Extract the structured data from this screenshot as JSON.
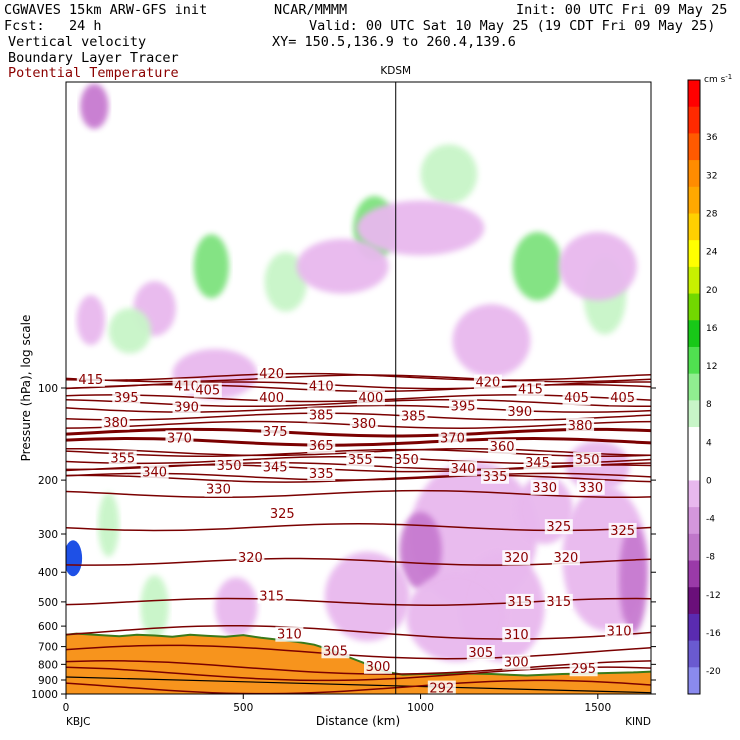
{
  "header": {
    "model": "CGWAVES 15km ARW-GFS init",
    "org": "NCAR/MMMM",
    "init": "Init: 00 UTC Fri 09 May 25",
    "fcst": "Fcst:   24 h",
    "valid": "Valid: 00 UTC Sat 10 May 25 (19 CDT Fri 09 May 25)",
    "field1": "Vertical velocity",
    "xy": "XY= 150.5,136.9 to 260.4,139.6",
    "field2": "Boundary Layer Tracer",
    "field3": "Potential Temperature"
  },
  "colors": {
    "theta": "#7a0000",
    "terrain": "#f7941d",
    "up_light": "#c8f5c8",
    "up_mid": "#7ee27e",
    "down_light": "#e8b8ee",
    "down_mid": "#c77ad0",
    "down_dark": "#9a3aa8",
    "tracer": "#1e50e6"
  },
  "chart_data": {
    "type": "heatmap",
    "xlabel": "Distance (km)",
    "ylabel": "Pressure (hPa), log scale",
    "xlim": [
      0,
      1650
    ],
    "ylim": [
      1000,
      10
    ],
    "log_scale_y": true,
    "x_ticks": [
      0,
      500,
      1000,
      1500
    ],
    "x_tick_labels": [
      "0",
      "500",
      "1000",
      "1500"
    ],
    "y_ticks": [
      100,
      200,
      300,
      400,
      500,
      600,
      700,
      800,
      900,
      1000
    ],
    "y_tick_labels": [
      "100",
      "200",
      "300",
      "400",
      "500",
      "600",
      "700",
      "800",
      "900",
      "1000"
    ],
    "station_left": "KBJC",
    "station_right": "KIND",
    "station_mid": "KDSM",
    "station_mid_km": 930,
    "colorbar": {
      "units_label": "cm s",
      "units_exp": "-1",
      "levels": [
        36,
        32,
        28,
        24,
        20,
        16,
        12,
        8,
        4,
        0,
        -4,
        -8,
        -12,
        -16,
        -20
      ],
      "labels": [
        "36",
        "32",
        "28",
        "24",
        "20",
        "16",
        "12",
        "8",
        "4",
        "0",
        "-4",
        "-8",
        "-12",
        "-16",
        "-20"
      ],
      "colors": [
        "#ff0000",
        "#ff2a00",
        "#ff5a00",
        "#ff8c00",
        "#ffa800",
        "#ffd000",
        "#ffff00",
        "#c8f000",
        "#72d800",
        "#18c818",
        "#50e050",
        "#90ee90",
        "#c8f5c8",
        "#ffffff",
        "#ffffff",
        "#e8b8ee",
        "#d496dc",
        "#c077ca",
        "#9a3aa8",
        "#6a0f7a",
        "#5a2bb0",
        "#6a5ad0",
        "#8a8aee"
      ]
    },
    "theta_lines": [
      {
        "label": "415",
        "p": 93
      },
      {
        "label": "420",
        "p": 92
      },
      {
        "label": "410",
        "p": 98
      },
      {
        "label": "405",
        "p": 100
      },
      {
        "label": "400",
        "p": 108
      },
      {
        "label": "395",
        "p": 112
      },
      {
        "label": "390",
        "p": 117
      },
      {
        "label": "385",
        "p": 124
      },
      {
        "label": "380",
        "p": 132
      },
      {
        "label": "375",
        "p": 140
      },
      {
        "label": "370",
        "p": 150
      },
      {
        "label": "365",
        "p": 162
      },
      {
        "label": "360",
        "p": 163
      },
      {
        "label": "355",
        "p": 172
      },
      {
        "label": "350",
        "p": 180
      },
      {
        "label": "345",
        "p": 183
      },
      {
        "label": "340",
        "p": 195
      },
      {
        "label": "335",
        "p": 198
      },
      {
        "label": "330",
        "p": 222
      },
      {
        "label": "325",
        "p": 285
      },
      {
        "label": "320",
        "p": 370
      },
      {
        "label": "315",
        "p": 500
      },
      {
        "label": "310",
        "p": 630
      },
      {
        "label": "305",
        "p": 730
      },
      {
        "label": "300",
        "p": 820
      },
      {
        "label": "295",
        "p": 860
      },
      {
        "label": "292",
        "p": 950
      }
    ],
    "theta_label_positions": [
      {
        "label": "415",
        "x": 70,
        "p": 94
      },
      {
        "label": "420",
        "x": 580,
        "p": 90
      },
      {
        "label": "410",
        "x": 340,
        "p": 99
      },
      {
        "label": "410",
        "x": 720,
        "p": 99
      },
      {
        "label": "420",
        "x": 1190,
        "p": 96
      },
      {
        "label": "415",
        "x": 1310,
        "p": 101
      },
      {
        "label": "405",
        "x": 400,
        "p": 102
      },
      {
        "label": "400",
        "x": 580,
        "p": 108
      },
      {
        "label": "400",
        "x": 860,
        "p": 108
      },
      {
        "label": "405",
        "x": 1440,
        "p": 108
      },
      {
        "label": "405",
        "x": 1570,
        "p": 108
      },
      {
        "label": "395",
        "x": 170,
        "p": 108
      },
      {
        "label": "390",
        "x": 340,
        "p": 116
      },
      {
        "label": "395",
        "x": 1120,
        "p": 115
      },
      {
        "label": "390",
        "x": 1280,
        "p": 120
      },
      {
        "label": "385",
        "x": 720,
        "p": 123
      },
      {
        "label": "385",
        "x": 980,
        "p": 124
      },
      {
        "label": "380",
        "x": 140,
        "p": 130
      },
      {
        "label": "380",
        "x": 840,
        "p": 131
      },
      {
        "label": "380",
        "x": 1450,
        "p": 133
      },
      {
        "label": "375",
        "x": 590,
        "p": 139
      },
      {
        "label": "370",
        "x": 320,
        "p": 146
      },
      {
        "label": "370",
        "x": 1090,
        "p": 146
      },
      {
        "label": "365",
        "x": 720,
        "p": 155
      },
      {
        "label": "360",
        "x": 1230,
        "p": 156
      },
      {
        "label": "355",
        "x": 160,
        "p": 170
      },
      {
        "label": "355",
        "x": 830,
        "p": 172
      },
      {
        "label": "350",
        "x": 960,
        "p": 172
      },
      {
        "label": "350",
        "x": 460,
        "p": 180
      },
      {
        "label": "345",
        "x": 590,
        "p": 182
      },
      {
        "label": "345",
        "x": 1330,
        "p": 176
      },
      {
        "label": "350",
        "x": 1470,
        "p": 172
      },
      {
        "label": "340",
        "x": 250,
        "p": 189
      },
      {
        "label": "335",
        "x": 720,
        "p": 191
      },
      {
        "label": "340",
        "x": 1120,
        "p": 184
      },
      {
        "label": "335",
        "x": 1210,
        "p": 195
      },
      {
        "label": "330",
        "x": 430,
        "p": 215
      },
      {
        "label": "330",
        "x": 1350,
        "p": 212
      },
      {
        "label": "330",
        "x": 1480,
        "p": 212
      },
      {
        "label": "325",
        "x": 610,
        "p": 258
      },
      {
        "label": "325",
        "x": 1390,
        "p": 285
      },
      {
        "label": "325",
        "x": 1570,
        "p": 293
      },
      {
        "label": "320",
        "x": 520,
        "p": 360
      },
      {
        "label": "320",
        "x": 1270,
        "p": 360
      },
      {
        "label": "320",
        "x": 1410,
        "p": 360
      },
      {
        "label": "315",
        "x": 580,
        "p": 480
      },
      {
        "label": "315",
        "x": 1280,
        "p": 500
      },
      {
        "label": "315",
        "x": 1390,
        "p": 500
      },
      {
        "label": "310",
        "x": 630,
        "p": 640
      },
      {
        "label": "310",
        "x": 1270,
        "p": 642
      },
      {
        "label": "310",
        "x": 1560,
        "p": 625
      },
      {
        "label": "305",
        "x": 760,
        "p": 725
      },
      {
        "label": "305",
        "x": 1170,
        "p": 735
      },
      {
        "label": "300",
        "x": 880,
        "p": 815
      },
      {
        "label": "300",
        "x": 1270,
        "p": 790
      },
      {
        "label": "295",
        "x": 1460,
        "p": 830
      },
      {
        "label": "292",
        "x": 1060,
        "p": 960
      }
    ],
    "terrain_km": [
      0,
      30,
      80,
      150,
      200,
      250,
      300,
      350,
      400,
      450,
      500,
      550,
      600,
      650,
      700,
      750,
      800,
      850,
      900,
      950,
      1000,
      1050,
      1100,
      1200,
      1300,
      1400,
      1500,
      1600,
      1650
    ],
    "terrain_hpa": [
      640,
      635,
      640,
      648,
      640,
      644,
      650,
      640,
      646,
      650,
      642,
      655,
      665,
      675,
      690,
      720,
      760,
      800,
      845,
      865,
      860,
      860,
      855,
      860,
      870,
      860,
      855,
      850,
      845
    ]
  }
}
